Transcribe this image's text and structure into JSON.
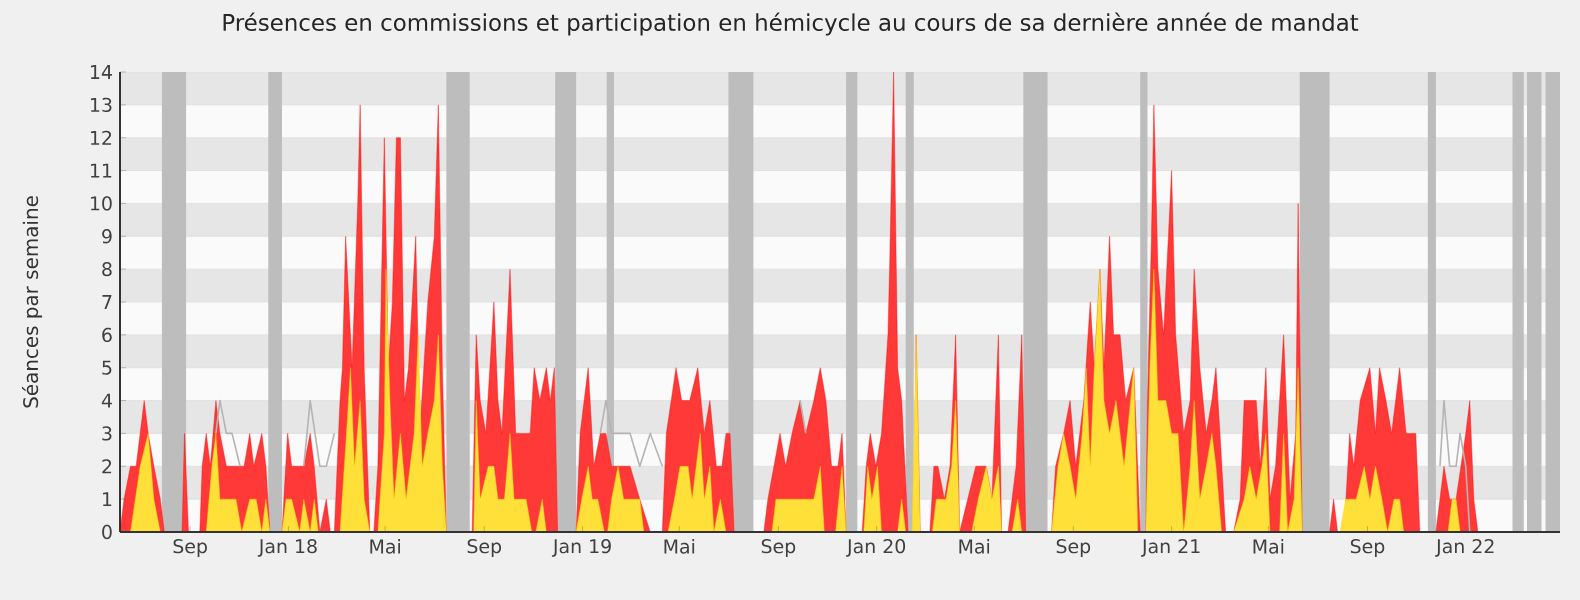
{
  "chart_data": {
    "type": "area",
    "title": "Présences en commissions et participation en hémicycle au cours de sa dernière année de mandat",
    "ylabel": "Séances par semaine",
    "xlim": [
      "2017-06-06",
      "2022-04-28"
    ],
    "ylim": [
      0,
      14
    ],
    "xticks": [
      {
        "value": "2017-09-01",
        "label": "Sep"
      },
      {
        "value": "2018-01-01",
        "label": "Jan 18"
      },
      {
        "value": "2018-05-01",
        "label": "Mai"
      },
      {
        "value": "2018-09-01",
        "label": "Sep"
      },
      {
        "value": "2019-01-01",
        "label": "Jan 19"
      },
      {
        "value": "2019-05-01",
        "label": "Mai"
      },
      {
        "value": "2019-09-01",
        "label": "Sep"
      },
      {
        "value": "2020-01-01",
        "label": "Jan 20"
      },
      {
        "value": "2020-05-01",
        "label": "Mai"
      },
      {
        "value": "2020-09-01",
        "label": "Sep"
      },
      {
        "value": "2021-01-01",
        "label": "Jan 21"
      },
      {
        "value": "2021-05-01",
        "label": "Mai"
      },
      {
        "value": "2021-09-01",
        "label": "Sep"
      },
      {
        "value": "2022-01-01",
        "label": "Jan 22"
      }
    ],
    "yticks": [
      0,
      1,
      2,
      3,
      4,
      5,
      6,
      7,
      8,
      9,
      10,
      11,
      12,
      13,
      14
    ],
    "grid": "y",
    "bands": [
      {
        "axis": "x",
        "from": "2017-07-28",
        "to": "2017-08-27",
        "color": "#bdbdbd"
      },
      {
        "axis": "x",
        "from": "2017-12-07",
        "to": "2017-12-24",
        "color": "#bdbdbd"
      },
      {
        "axis": "x",
        "from": "2018-07-16",
        "to": "2018-08-14",
        "color": "#bdbdbd"
      },
      {
        "axis": "x",
        "from": "2018-11-28",
        "to": "2018-12-24",
        "color": "#bdbdbd"
      },
      {
        "axis": "x",
        "from": "2019-01-31",
        "to": "2019-02-09",
        "color": "#bdbdbd"
      },
      {
        "axis": "x",
        "from": "2019-07-01",
        "to": "2019-08-01",
        "color": "#bdbdbd"
      },
      {
        "axis": "x",
        "from": "2019-11-24",
        "to": "2019-12-08",
        "color": "#bdbdbd"
      },
      {
        "axis": "x",
        "from": "2020-02-06",
        "to": "2020-02-16",
        "color": "#bdbdbd"
      },
      {
        "axis": "x",
        "from": "2020-07-01",
        "to": "2020-07-31",
        "color": "#bdbdbd"
      },
      {
        "axis": "x",
        "from": "2020-11-23",
        "to": "2020-12-02",
        "color": "#bdbdbd"
      },
      {
        "axis": "x",
        "from": "2021-06-09",
        "to": "2021-07-16",
        "color": "#bdbdbd"
      },
      {
        "axis": "x",
        "from": "2021-11-15",
        "to": "2021-11-25",
        "color": "#bdbdbd"
      },
      {
        "axis": "x",
        "from": "2022-02-28",
        "to": "2022-03-14",
        "color": "#bdbdbd"
      },
      {
        "axis": "x",
        "from": "2022-03-18",
        "to": "2022-04-05",
        "color": "#bdbdbd"
      },
      {
        "axis": "x",
        "from": "2022-04-10",
        "to": "2022-04-28",
        "color": "#bdbdbd"
      }
    ],
    "series": [
      {
        "color": "#ff0000",
        "x": [
          "2017-06-06",
          "2017-06-11",
          "2017-06-19",
          "2017-06-26",
          "2017-07-01",
          "2017-07-06",
          "2017-07-11",
          "2017-07-18",
          "2017-07-26",
          "2017-07-31",
          "2017-08-22",
          "2017-08-25",
          "2017-08-30",
          "2017-09-13",
          "2017-09-16",
          "2017-09-21",
          "2017-09-26",
          "2017-10-03",
          "2017-10-08",
          "2017-10-16",
          "2017-11-07",
          "2017-11-14",
          "2017-11-19",
          "2017-11-29",
          "2017-12-04",
          "2017-12-09",
          "2017-12-24",
          "2017-12-31",
          "2018-01-05",
          "2018-01-20",
          "2018-01-28",
          "2018-02-02",
          "2018-02-09",
          "2018-02-17",
          "2018-02-22",
          "2018-02-27",
          "2018-03-06",
          "2018-03-09",
          "2018-03-13",
          "2018-03-21",
          "2018-03-28",
          "2018-03-31",
          "2018-04-05",
          "2018-04-12",
          "2018-04-17",
          "2018-04-22",
          "2018-04-30",
          "2018-05-05",
          "2018-05-10",
          "2018-05-15",
          "2018-05-20",
          "2018-05-25",
          "2018-05-30",
          "2018-06-08",
          "2018-06-13",
          "2018-06-23",
          "2018-07-01",
          "2018-07-06",
          "2018-07-11",
          "2018-07-16",
          "2018-08-17",
          "2018-08-22",
          "2018-08-27",
          "2018-09-03",
          "2018-09-13",
          "2018-09-18",
          "2018-09-23",
          "2018-10-03",
          "2018-10-10",
          "2018-10-20",
          "2018-10-28",
          "2018-11-02",
          "2018-11-09",
          "2018-11-17",
          "2018-11-22",
          "2018-11-27",
          "2018-12-01",
          "2018-12-24",
          "2018-12-29",
          "2019-01-08",
          "2019-01-15",
          "2019-01-23",
          "2019-01-30",
          "2019-02-06",
          "2019-02-16",
          "2019-03-01",
          "2019-03-13",
          "2019-03-26",
          "2019-04-10",
          "2019-04-15",
          "2019-04-27",
          "2019-05-04",
          "2019-05-14",
          "2019-05-24",
          "2019-06-01",
          "2019-06-08",
          "2019-06-16",
          "2019-06-23",
          "2019-06-28",
          "2019-07-03",
          "2019-07-08",
          "2019-08-14",
          "2019-08-19",
          "2019-09-03",
          "2019-09-10",
          "2019-09-18",
          "2019-09-28",
          "2019-10-05",
          "2019-10-15",
          "2019-10-23",
          "2019-10-30",
          "2019-11-06",
          "2019-11-14",
          "2019-11-19",
          "2019-11-24",
          "2019-12-14",
          "2019-12-19",
          "2019-12-24",
          "2019-12-31",
          "2020-01-07",
          "2020-01-15",
          "2020-01-17",
          "2020-01-22",
          "2020-01-27",
          "2020-02-01",
          "2020-02-09",
          "2020-02-16",
          "2020-02-19",
          "2020-02-24",
          "2020-03-07",
          "2020-03-12",
          "2020-03-17",
          "2020-03-25",
          "2020-04-01",
          "2020-04-08",
          "2020-04-13",
          "2020-04-23",
          "2020-05-03",
          "2020-05-08",
          "2020-05-16",
          "2020-05-23",
          "2020-05-31",
          "2020-06-04",
          "2020-06-12",
          "2020-06-17",
          "2020-06-22",
          "2020-06-29",
          "2020-07-04",
          "2020-08-05",
          "2020-08-10",
          "2020-08-20",
          "2020-08-28",
          "2020-09-04",
          "2020-09-14",
          "2020-09-22",
          "2020-09-27",
          "2020-10-04",
          "2020-10-09",
          "2020-10-16",
          "2020-10-21",
          "2020-10-29",
          "2020-11-05",
          "2020-11-15",
          "2020-11-23",
          "2020-11-30",
          "2020-12-02",
          "2020-12-07",
          "2020-12-10",
          "2020-12-15",
          "2020-12-22",
          "2021-01-01",
          "2021-01-06",
          "2021-01-16",
          "2021-01-24",
          "2021-01-29",
          "2021-02-05",
          "2021-02-13",
          "2021-02-20",
          "2021-02-25",
          "2021-03-02",
          "2021-03-09",
          "2021-03-19",
          "2021-03-27",
          "2021-04-01",
          "2021-04-16",
          "2021-04-21",
          "2021-04-28",
          "2021-05-03",
          "2021-05-10",
          "2021-05-20",
          "2021-05-28",
          "2021-06-04",
          "2021-06-07",
          "2021-06-12",
          "2021-07-16",
          "2021-07-21",
          "2021-07-26",
          "2021-08-03",
          "2021-08-10",
          "2021-08-15",
          "2021-08-23",
          "2021-09-04",
          "2021-09-11",
          "2021-09-16",
          "2021-09-24",
          "2021-10-01",
          "2021-10-11",
          "2021-10-19",
          "2021-10-31",
          "2021-11-05",
          "2021-11-25",
          "2021-11-30",
          "2021-12-05",
          "2021-12-12",
          "2021-12-20",
          "2022-01-01",
          "2022-01-06",
          "2022-01-11",
          "2022-01-16"
        ],
        "values": [
          0,
          1,
          2,
          2,
          3,
          4,
          3,
          2,
          1,
          0,
          0,
          3,
          0,
          0,
          2,
          3,
          2,
          4,
          3,
          2,
          2,
          3,
          2,
          3,
          2,
          0,
          0,
          3,
          2,
          2,
          3,
          2,
          0,
          1,
          0,
          0,
          4,
          5,
          9,
          5,
          10,
          13,
          5,
          0,
          0,
          2,
          12,
          5,
          7,
          12,
          12,
          4,
          5,
          9,
          3,
          7,
          9,
          13,
          5,
          0,
          0,
          6,
          4,
          3,
          7,
          4,
          3,
          8,
          3,
          3,
          3,
          5,
          4,
          5,
          4,
          5,
          0,
          0,
          3,
          5,
          2,
          3,
          3,
          2,
          2,
          2,
          1,
          0,
          0,
          3,
          5,
          4,
          4,
          5,
          3,
          4,
          2,
          2,
          3,
          3,
          0,
          0,
          1,
          3,
          2,
          3,
          4,
          3,
          4,
          5,
          4,
          2,
          2,
          3,
          0,
          0,
          2,
          3,
          2,
          3,
          6,
          8,
          14,
          5,
          4,
          0,
          0,
          6,
          0,
          0,
          2,
          2,
          1,
          2,
          6,
          0,
          1,
          2,
          2,
          2,
          1,
          6,
          0,
          0,
          1,
          2,
          6,
          0,
          0,
          2,
          3,
          4,
          2,
          4,
          7,
          5,
          8,
          5,
          9,
          6,
          6,
          4,
          5,
          0,
          0,
          4,
          9,
          13,
          8,
          6,
          11,
          6,
          3,
          4,
          8,
          5,
          3,
          4,
          5,
          3,
          0,
          0,
          1,
          4,
          4,
          2,
          5,
          1,
          2,
          6,
          1,
          3,
          10,
          0,
          0,
          1,
          0,
          0,
          3,
          2,
          4,
          5,
          3,
          5,
          4,
          3,
          5,
          3,
          3,
          0,
          0,
          1,
          2,
          1,
          1,
          3,
          4,
          1,
          0
        ]
      },
      {
        "color": "#ffd700",
        "x": [
          "2017-06-19",
          "2017-07-01",
          "2017-07-11",
          "2017-07-18",
          "2017-07-26",
          "2017-09-21",
          "2017-09-28",
          "2017-10-03",
          "2017-10-08",
          "2017-10-28",
          "2017-11-04",
          "2017-11-14",
          "2017-11-22",
          "2017-11-29",
          "2017-12-04",
          "2017-12-09",
          "2017-12-24",
          "2017-12-29",
          "2018-01-05",
          "2018-01-15",
          "2018-01-20",
          "2018-01-28",
          "2018-02-02",
          "2018-02-07",
          "2018-03-06",
          "2018-03-14",
          "2018-03-19",
          "2018-03-24",
          "2018-03-31",
          "2018-04-05",
          "2018-04-12",
          "2018-04-22",
          "2018-04-30",
          "2018-05-02",
          "2018-05-07",
          "2018-05-12",
          "2018-05-20",
          "2018-05-27",
          "2018-06-06",
          "2018-06-11",
          "2018-06-16",
          "2018-06-23",
          "2018-07-01",
          "2018-07-06",
          "2018-07-11",
          "2018-07-16",
          "2018-08-19",
          "2018-08-22",
          "2018-08-27",
          "2018-09-06",
          "2018-09-13",
          "2018-09-18",
          "2018-09-26",
          "2018-10-03",
          "2018-10-08",
          "2018-10-15",
          "2018-10-23",
          "2018-10-30",
          "2018-11-04",
          "2018-11-12",
          "2018-11-17",
          "2018-12-24",
          "2018-12-31",
          "2019-01-08",
          "2019-01-13",
          "2019-01-20",
          "2019-01-28",
          "2019-02-01",
          "2019-02-06",
          "2019-02-14",
          "2019-02-21",
          "2019-03-03",
          "2019-03-13",
          "2019-03-18",
          "2019-04-17",
          "2019-04-25",
          "2019-05-02",
          "2019-05-12",
          "2019-05-17",
          "2019-05-22",
          "2019-05-27",
          "2019-06-01",
          "2019-06-08",
          "2019-06-13",
          "2019-06-21",
          "2019-06-28",
          "2019-08-24",
          "2019-08-29",
          "2019-09-05",
          "2019-09-18",
          "2019-09-28",
          "2019-10-15",
          "2019-10-23",
          "2019-10-28",
          "2019-11-11",
          "2019-11-19",
          "2019-11-24",
          "2019-12-16",
          "2019-12-21",
          "2019-12-26",
          "2020-01-02",
          "2020-01-07",
          "2020-01-27",
          "2020-02-01",
          "2020-02-06",
          "2020-02-14",
          "2020-02-19",
          "2020-02-24",
          "2020-03-10",
          "2020-03-15",
          "2020-03-20",
          "2020-03-27",
          "2020-04-03",
          "2020-04-08",
          "2020-04-13",
          "2020-04-28",
          "2020-05-06",
          "2020-05-16",
          "2020-05-23",
          "2020-05-31",
          "2020-06-04",
          "2020-06-17",
          "2020-06-24",
          "2020-06-29",
          "2020-08-05",
          "2020-08-13",
          "2020-08-20",
          "2020-08-28",
          "2020-09-04",
          "2020-09-12",
          "2020-09-17",
          "2020-09-22",
          "2020-09-27",
          "2020-10-04",
          "2020-10-09",
          "2020-10-16",
          "2020-10-24",
          "2020-10-29",
          "2020-11-03",
          "2020-11-15",
          "2020-11-20",
          "2020-11-30",
          "2020-12-05",
          "2020-12-10",
          "2020-12-15",
          "2020-12-25",
          "2021-01-01",
          "2021-01-09",
          "2021-01-16",
          "2021-01-24",
          "2021-01-29",
          "2021-02-05",
          "2021-02-13",
          "2021-02-20",
          "2021-02-25",
          "2021-03-04",
          "2021-03-19",
          "2021-04-01",
          "2021-04-08",
          "2021-04-16",
          "2021-04-23",
          "2021-04-28",
          "2021-05-03",
          "2021-05-15",
          "2021-05-20",
          "2021-05-25",
          "2021-06-02",
          "2021-06-07",
          "2021-06-12",
          "2021-07-29",
          "2021-08-05",
          "2021-08-10",
          "2021-08-18",
          "2021-08-28",
          "2021-09-04",
          "2021-09-11",
          "2021-09-19",
          "2021-09-26",
          "2021-10-04",
          "2021-10-11",
          "2021-10-16",
          "2021-12-10",
          "2021-12-15",
          "2021-12-20",
          "2021-12-25"
        ],
        "values": [
          0,
          2,
          3,
          1,
          0,
          0,
          2,
          3,
          1,
          1,
          0,
          1,
          1,
          0,
          1,
          0,
          0,
          1,
          1,
          0,
          1,
          0,
          1,
          0,
          0,
          3,
          5,
          2,
          4,
          1,
          0,
          0,
          3,
          8,
          4,
          1,
          3,
          1,
          3,
          6,
          2,
          3,
          4,
          6,
          2,
          0,
          0,
          4,
          1,
          2,
          2,
          1,
          1,
          3,
          1,
          1,
          1,
          0,
          0,
          1,
          0,
          0,
          1,
          2,
          1,
          1,
          0,
          0,
          1,
          2,
          1,
          1,
          1,
          0,
          0,
          1,
          2,
          2,
          1,
          2,
          3,
          1,
          2,
          0,
          1,
          0,
          0,
          1,
          1,
          1,
          1,
          1,
          2,
          0,
          0,
          2,
          0,
          0,
          2,
          1,
          2,
          0,
          0,
          1,
          0,
          0,
          6,
          0,
          0,
          1,
          1,
          1,
          2,
          4,
          0,
          0,
          1,
          2,
          1,
          2,
          0,
          0,
          1,
          0,
          0,
          2,
          3,
          2,
          1,
          3,
          5,
          2,
          5,
          8,
          4,
          3,
          4,
          3,
          2,
          5,
          0,
          0,
          5,
          8,
          4,
          4,
          3,
          3,
          0,
          2,
          4,
          1,
          2,
          3,
          2,
          0,
          0,
          1,
          2,
          1,
          2,
          3,
          0,
          0,
          3,
          0,
          1,
          5,
          0,
          0,
          1,
          1,
          1,
          2,
          1,
          2,
          1,
          0,
          1,
          1,
          0,
          0,
          1,
          1,
          0
        ]
      },
      {
        "type": "line",
        "color": "#b4b4b4",
        "x": [
          "2017-10-03",
          "2017-10-08",
          "2017-10-16",
          "2017-10-23",
          "2017-11-02",
          "2017-11-10",
          "2018-01-20",
          "2018-01-28",
          "2018-02-09",
          "2018-02-17",
          "2018-02-27",
          "2018-03-05",
          "2019-01-23",
          "2019-01-30",
          "2019-02-06",
          "2019-02-16",
          "2019-03-01",
          "2019-03-13",
          "2019-03-26",
          "2019-04-10",
          "2019-04-15",
          "2019-09-28",
          "2019-10-05",
          "2019-10-12",
          "2021-11-30",
          "2021-12-05",
          "2021-12-12",
          "2021-12-20",
          "2021-12-25",
          "2022-01-01",
          "2022-01-06"
        ],
        "values": [
          3,
          4,
          3,
          3,
          2,
          null,
          2,
          4,
          2,
          2,
          3,
          null,
          3,
          4,
          3,
          3,
          3,
          2,
          3,
          2,
          null,
          4,
          3,
          null,
          2,
          4,
          2,
          2,
          3,
          2,
          0
        ]
      }
    ]
  }
}
